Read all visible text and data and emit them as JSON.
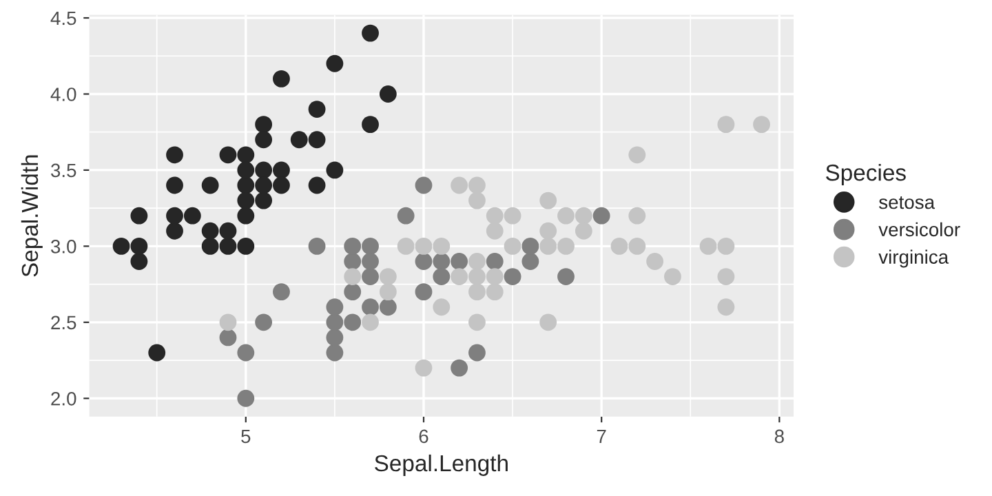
{
  "chart_data": {
    "type": "scatter",
    "xlabel": "Sepal.Length",
    "ylabel": "Sepal.Width",
    "legend_title": "Species",
    "legend": "right",
    "grid": true,
    "marker": "circle",
    "xlim": [
      4.12,
      8.08
    ],
    "xticks": [
      5,
      6,
      7,
      8
    ],
    "ylim": [
      1.88,
      4.52
    ],
    "yticks": [
      {
        "value": 2.0,
        "label": "2.0"
      },
      {
        "value": 2.5,
        "label": "2.5"
      },
      {
        "value": 3.0,
        "label": "3.0"
      },
      {
        "value": 3.5,
        "label": "3.5"
      },
      {
        "value": 4.0,
        "label": "4.0"
      },
      {
        "value": 4.5,
        "label": "4.5"
      }
    ],
    "series": [
      {
        "name": "setosa",
        "color": "#262626",
        "x": [
          5.1,
          4.9,
          4.7,
          4.6,
          5.0,
          5.4,
          4.6,
          5.0,
          4.4,
          4.9,
          5.4,
          4.8,
          4.8,
          4.3,
          5.8,
          5.7,
          5.7,
          5.1,
          5.4,
          5.1,
          4.6,
          5.1,
          5.0,
          5.2,
          5.2,
          4.8,
          5.2,
          5.5,
          5.0,
          5.5,
          4.9,
          4.4,
          5.1,
          5.0,
          4.5,
          4.4,
          4.6,
          5.3,
          5.0
        ],
        "values": [
          3.5,
          3.0,
          3.2,
          3.1,
          3.6,
          3.9,
          3.4,
          3.4,
          2.9,
          3.1,
          3.7,
          3.4,
          3.0,
          3.0,
          4.0,
          4.4,
          3.8,
          3.8,
          3.4,
          3.7,
          3.6,
          3.3,
          3.0,
          3.5,
          3.4,
          3.1,
          4.1,
          4.2,
          3.2,
          3.5,
          3.6,
          3.0,
          3.4,
          3.5,
          2.3,
          3.2,
          3.2,
          3.7,
          3.3
        ]
      },
      {
        "name": "versicolor",
        "color": "#7f7f7f",
        "x": [
          7.0,
          5.5,
          6.5,
          5.7,
          4.9,
          6.6,
          5.2,
          5.0,
          6.1,
          5.6,
          5.6,
          6.2,
          5.6,
          5.9,
          6.1,
          6.4,
          6.6,
          6.8,
          6.0,
          5.7,
          5.5,
          6.0,
          5.4,
          6.0,
          6.3,
          5.5,
          5.5,
          5.8,
          5.0,
          5.6,
          5.7,
          5.7,
          6.2,
          5.1
        ],
        "values": [
          3.2,
          2.3,
          2.8,
          2.8,
          2.4,
          2.9,
          2.7,
          2.0,
          2.9,
          2.9,
          3.0,
          2.2,
          2.5,
          3.2,
          2.8,
          2.9,
          3.0,
          2.8,
          2.9,
          2.6,
          2.4,
          2.7,
          3.0,
          3.4,
          2.3,
          2.5,
          2.6,
          2.6,
          2.3,
          2.7,
          3.0,
          2.9,
          2.9,
          2.5
        ]
      },
      {
        "name": "virginica",
        "color": "#c4c4c4",
        "x": [
          6.3,
          5.8,
          7.1,
          6.3,
          6.5,
          7.6,
          4.9,
          7.3,
          6.7,
          7.2,
          6.5,
          6.4,
          6.8,
          5.7,
          5.8,
          6.4,
          7.7,
          7.7,
          6.0,
          6.9,
          5.6,
          7.7,
          6.3,
          6.7,
          7.2,
          6.2,
          6.1,
          6.4,
          7.2,
          7.4,
          7.9,
          6.3,
          6.1,
          7.7,
          6.3,
          6.4,
          6.0,
          6.9,
          6.7,
          6.8,
          6.7,
          6.3,
          6.2,
          5.9
        ],
        "values": [
          3.3,
          2.7,
          3.0,
          2.9,
          3.0,
          3.0,
          2.5,
          2.9,
          2.5,
          3.6,
          3.2,
          2.7,
          3.0,
          2.5,
          2.8,
          3.2,
          3.8,
          2.6,
          2.2,
          3.2,
          2.8,
          2.8,
          2.7,
          3.3,
          3.2,
          2.8,
          3.0,
          2.8,
          3.0,
          2.8,
          3.8,
          2.8,
          2.6,
          3.0,
          3.4,
          3.1,
          3.0,
          3.1,
          3.1,
          3.2,
          3.0,
          2.5,
          3.4,
          3.0
        ]
      }
    ]
  }
}
